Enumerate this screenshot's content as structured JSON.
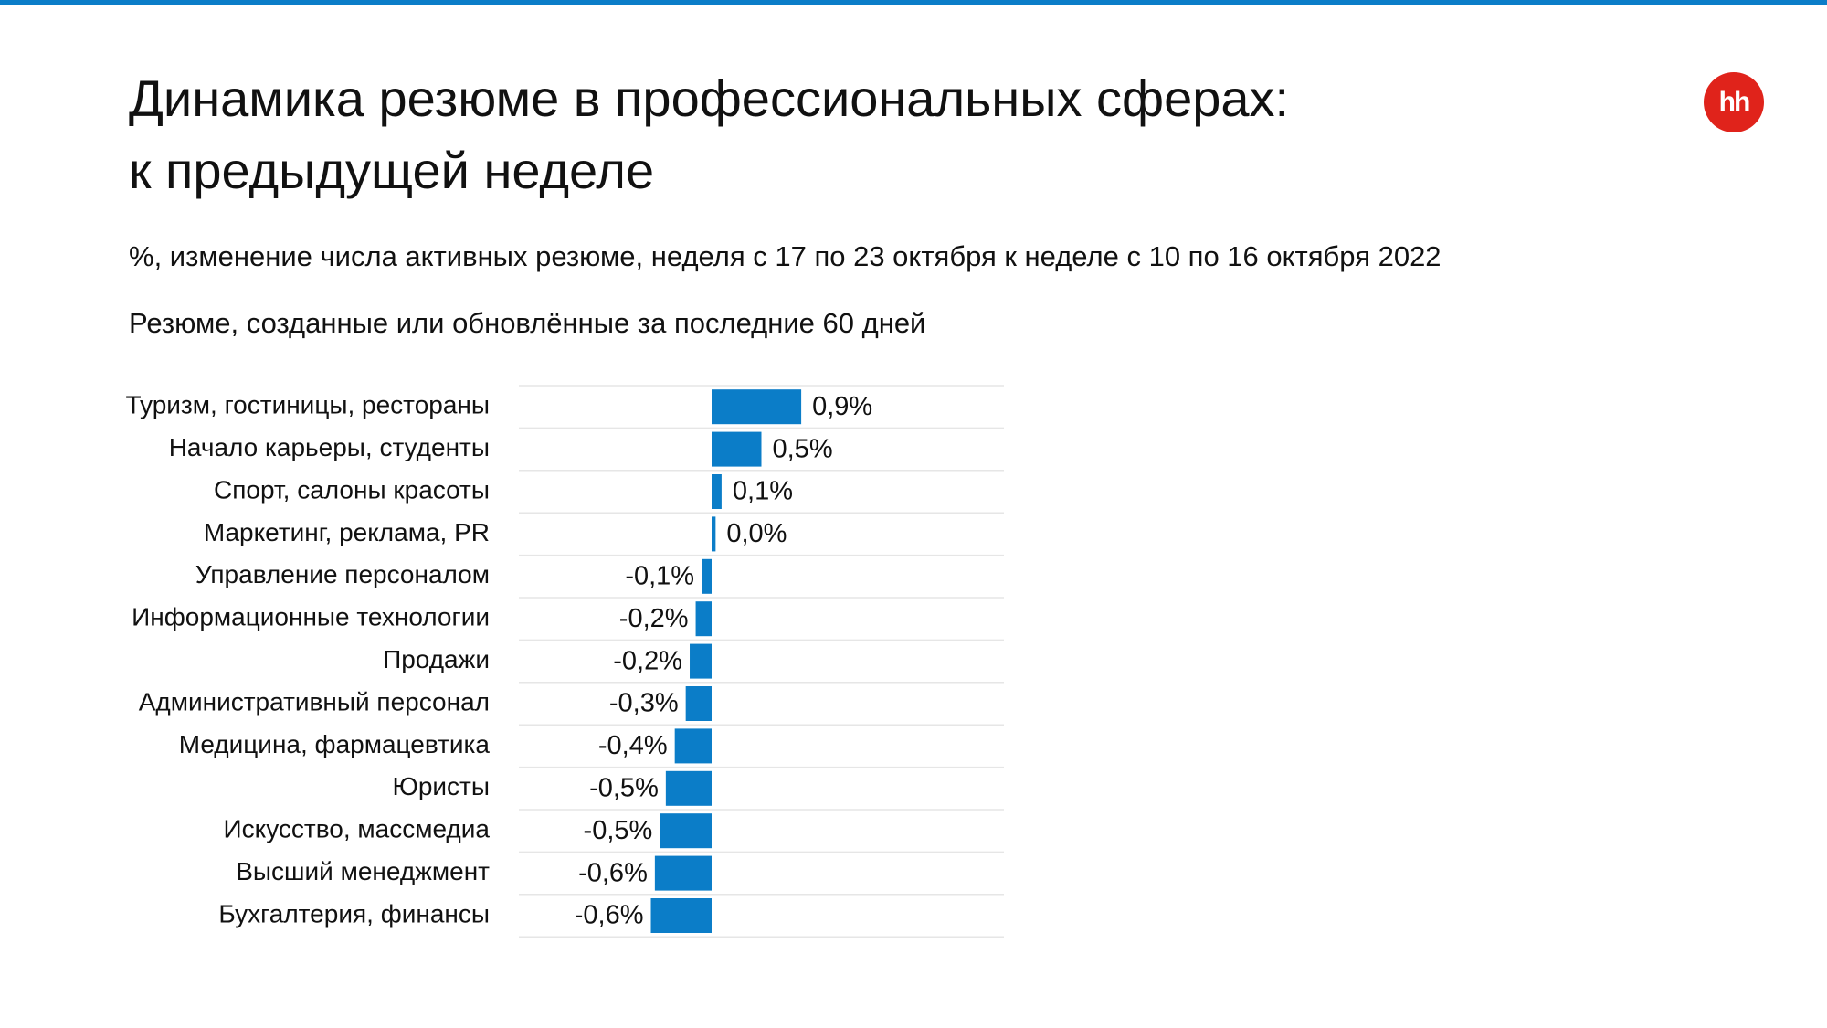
{
  "chart_data": {
    "type": "bar",
    "orientation": "horizontal",
    "logo": "hh",
    "title": [
      "Динамика резюме в профессиональных сферах:",
      "к предыдущей неделе"
    ],
    "subtitle": "%, изменение числа активных резюме, неделя с 17 по 23 октября к неделе с 10 по 16 октября 2022",
    "note": "Резюме, созданные или обновлённые за последние 60 дней",
    "categories": [
      "Туризм, гостиницы, рестораны",
      "Начало карьеры, студенты",
      "Спорт, салоны красоты",
      "Маркетинг, реклама, PR",
      "Управление персоналом",
      "Информационные технологии",
      "Продажи",
      "Административный персонал",
      "Медицина, фармацевтика",
      "Юристы",
      "Искусство, массмедиа",
      "Высший менеджмент",
      "Бухгалтерия, финансы"
    ],
    "values": [
      0.9,
      0.5,
      0.1,
      0.04,
      -0.1,
      -0.16,
      -0.22,
      -0.26,
      -0.37,
      -0.46,
      -0.52,
      -0.57,
      -0.61
    ],
    "value_labels": [
      "0,9%",
      "0,5%",
      "0,1%",
      "0,0%",
      "-0,1%",
      "-0,2%",
      "-0,2%",
      "-0,3%",
      "-0,4%",
      "-0,5%",
      "-0,5%",
      "-0,6%",
      "-0,6%"
    ],
    "color": "#0b7dc8"
  }
}
